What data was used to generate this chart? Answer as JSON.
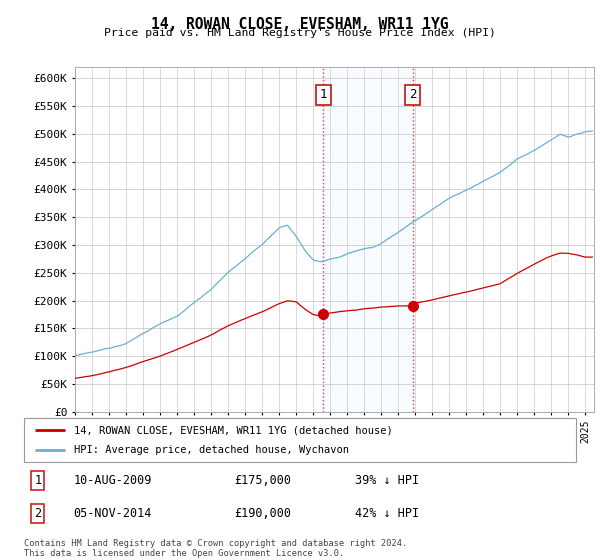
{
  "title": "14, ROWAN CLOSE, EVESHAM, WR11 1YG",
  "subtitle": "Price paid vs. HM Land Registry's House Price Index (HPI)",
  "ylim": [
    0,
    620000
  ],
  "ytick_values": [
    0,
    50000,
    100000,
    150000,
    200000,
    250000,
    300000,
    350000,
    400000,
    450000,
    500000,
    550000,
    600000
  ],
  "xlim_start": 1995.0,
  "xlim_end": 2025.5,
  "sale1_x": 2009.6,
  "sale1_y": 175000,
  "sale1_label": "1",
  "sale1_date": "10-AUG-2009",
  "sale1_price": "£175,000",
  "sale1_pct": "39% ↓ HPI",
  "sale2_x": 2014.84,
  "sale2_y": 190000,
  "sale2_label": "2",
  "sale2_date": "05-NOV-2014",
  "sale2_price": "£190,000",
  "sale2_pct": "42% ↓ HPI",
  "hpi_color": "#6baed6",
  "price_color": "#cc0000",
  "shaded_color": "#ddeeff",
  "legend_label_price": "14, ROWAN CLOSE, EVESHAM, WR11 1YG (detached house)",
  "legend_label_hpi": "HPI: Average price, detached house, Wychavon",
  "footnote": "Contains HM Land Registry data © Crown copyright and database right 2024.\nThis data is licensed under the Open Government Licence v3.0.",
  "background_color": "#ffffff",
  "grid_color": "#cccccc",
  "hpi_anchors_x": [
    1995,
    1996,
    1997,
    1998,
    1999,
    2000,
    2001,
    2002,
    2003,
    2004,
    2005,
    2006,
    2007,
    2007.5,
    2008,
    2008.5,
    2009,
    2009.5,
    2010,
    2010.5,
    2011,
    2011.5,
    2012,
    2012.5,
    2013,
    2013.5,
    2014,
    2014.5,
    2015,
    2016,
    2017,
    2018,
    2019,
    2020,
    2021,
    2022,
    2023,
    2023.5,
    2024,
    2024.5,
    2025
  ],
  "hpi_anchors_y": [
    100000,
    105000,
    112000,
    122000,
    140000,
    158000,
    170000,
    195000,
    220000,
    250000,
    275000,
    300000,
    330000,
    335000,
    315000,
    290000,
    272000,
    270000,
    275000,
    278000,
    285000,
    290000,
    295000,
    298000,
    305000,
    315000,
    325000,
    335000,
    345000,
    365000,
    385000,
    400000,
    415000,
    430000,
    455000,
    470000,
    490000,
    500000,
    495000,
    500000,
    505000
  ],
  "price_anchors_x": [
    1995,
    1996,
    1997,
    1998,
    1999,
    2000,
    2001,
    2002,
    2003,
    2004,
    2005,
    2006,
    2007,
    2007.5,
    2008,
    2008.5,
    2009,
    2009.5,
    2009.6,
    2010,
    2010.5,
    2011,
    2011.5,
    2012,
    2012.5,
    2013,
    2013.5,
    2014,
    2014.5,
    2014.84,
    2015,
    2016,
    2017,
    2018,
    2019,
    2020,
    2021,
    2022,
    2023,
    2023.5,
    2024,
    2024.5,
    2025
  ],
  "price_anchors_y": [
    60000,
    65000,
    72000,
    80000,
    90000,
    100000,
    112000,
    125000,
    138000,
    155000,
    168000,
    180000,
    195000,
    200000,
    198000,
    185000,
    175000,
    172000,
    175000,
    178000,
    180000,
    182000,
    183000,
    185000,
    186000,
    188000,
    189000,
    190000,
    190000,
    190000,
    195000,
    200000,
    208000,
    215000,
    222000,
    230000,
    248000,
    265000,
    280000,
    285000,
    285000,
    282000,
    278000
  ]
}
